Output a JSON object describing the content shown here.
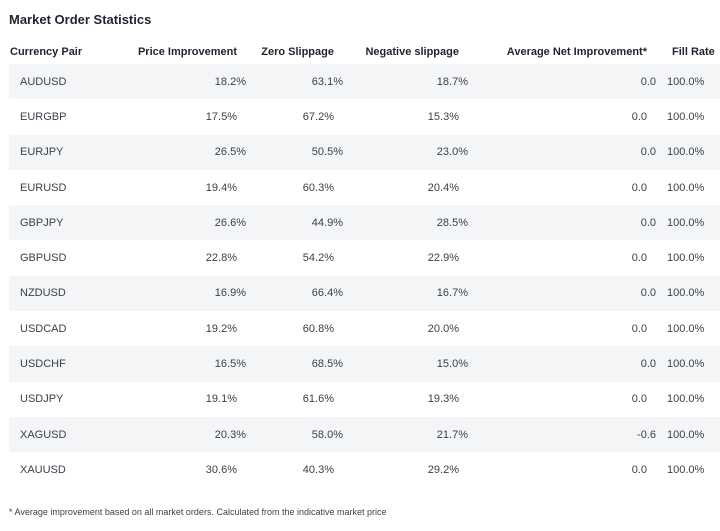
{
  "title": "Market Order Statistics",
  "columns": [
    "Currency Pair",
    "Price Improvement",
    "Zero Slippage",
    "Negative slippage",
    "Average Net Improvement*",
    "Fill Rate"
  ],
  "rows": [
    {
      "pair": "AUDUSD",
      "price_improvement": "18.2%",
      "zero_slippage": "63.1%",
      "negative_slippage": "18.7%",
      "avg_net_improvement": "0.0",
      "fill_rate": "100.0%"
    },
    {
      "pair": "EURGBP",
      "price_improvement": "17.5%",
      "zero_slippage": "67.2%",
      "negative_slippage": "15.3%",
      "avg_net_improvement": "0.0",
      "fill_rate": "100.0%"
    },
    {
      "pair": "EURJPY",
      "price_improvement": "26.5%",
      "zero_slippage": "50.5%",
      "negative_slippage": "23.0%",
      "avg_net_improvement": "0.0",
      "fill_rate": "100.0%"
    },
    {
      "pair": "EURUSD",
      "price_improvement": "19.4%",
      "zero_slippage": "60.3%",
      "negative_slippage": "20.4%",
      "avg_net_improvement": "0.0",
      "fill_rate": "100.0%"
    },
    {
      "pair": "GBPJPY",
      "price_improvement": "26.6%",
      "zero_slippage": "44.9%",
      "negative_slippage": "28.5%",
      "avg_net_improvement": "0.0",
      "fill_rate": "100.0%"
    },
    {
      "pair": "GBPUSD",
      "price_improvement": "22.8%",
      "zero_slippage": "54.2%",
      "negative_slippage": "22.9%",
      "avg_net_improvement": "0.0",
      "fill_rate": "100.0%"
    },
    {
      "pair": "NZDUSD",
      "price_improvement": "16.9%",
      "zero_slippage": "66.4%",
      "negative_slippage": "16.7%",
      "avg_net_improvement": "0.0",
      "fill_rate": "100.0%"
    },
    {
      "pair": "USDCAD",
      "price_improvement": "19.2%",
      "zero_slippage": "60.8%",
      "negative_slippage": "20.0%",
      "avg_net_improvement": "0.0",
      "fill_rate": "100.0%"
    },
    {
      "pair": "USDCHF",
      "price_improvement": "16.5%",
      "zero_slippage": "68.5%",
      "negative_slippage": "15.0%",
      "avg_net_improvement": "0.0",
      "fill_rate": "100.0%"
    },
    {
      "pair": "USDJPY",
      "price_improvement": "19.1%",
      "zero_slippage": "61.6%",
      "negative_slippage": "19.3%",
      "avg_net_improvement": "0.0",
      "fill_rate": "100.0%"
    },
    {
      "pair": "XAGUSD",
      "price_improvement": "20.3%",
      "zero_slippage": "58.0%",
      "negative_slippage": "21.7%",
      "avg_net_improvement": "-0.6",
      "fill_rate": "100.0%"
    },
    {
      "pair": "XAUUSD",
      "price_improvement": "30.6%",
      "zero_slippage": "40.3%",
      "negative_slippage": "29.2%",
      "avg_net_improvement": "0.0",
      "fill_rate": "100.0%"
    }
  ],
  "footnote": "* Average improvement based on all market orders. Calculated from the indicative market price",
  "colors": {
    "row_shade": "#f4f5f7",
    "text": "#1f2430"
  }
}
